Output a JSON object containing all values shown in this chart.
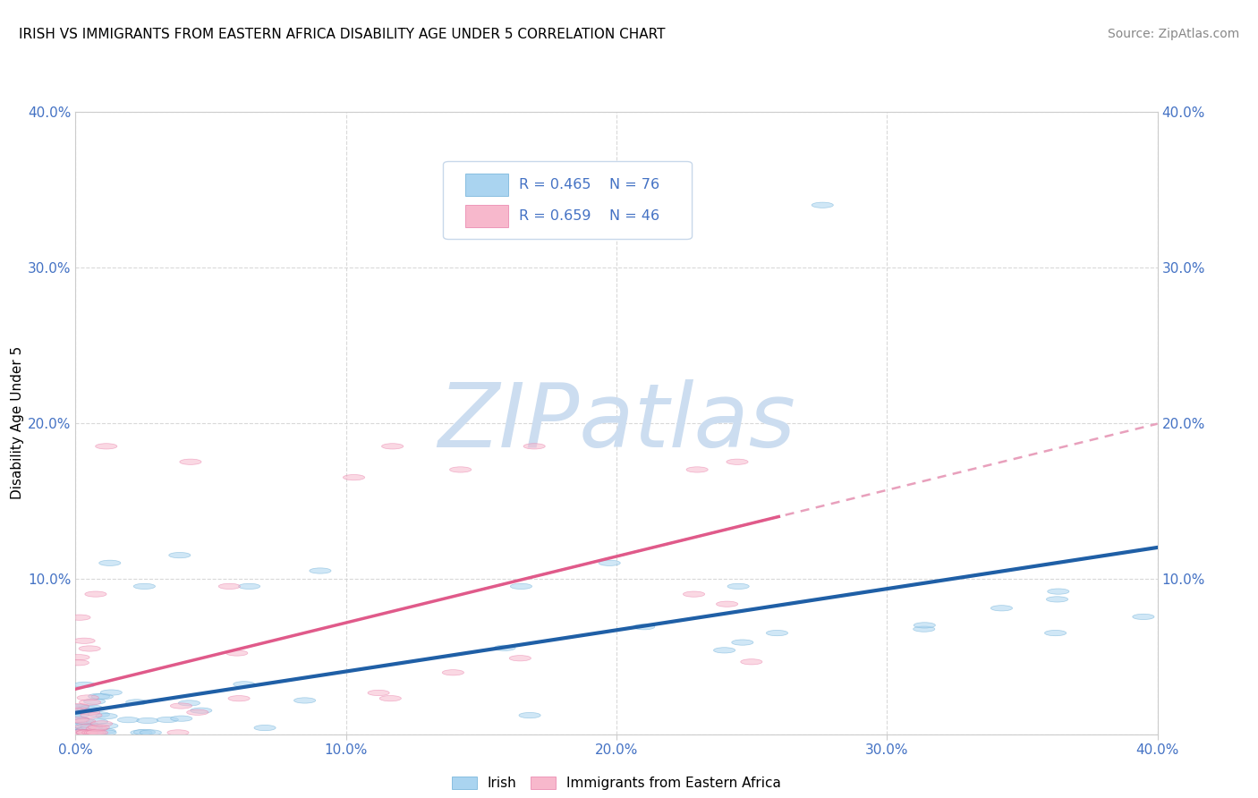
{
  "title": "IRISH VS IMMIGRANTS FROM EASTERN AFRICA DISABILITY AGE UNDER 5 CORRELATION CHART",
  "source": "Source: ZipAtlas.com",
  "ylabel": "Disability Age Under 5",
  "x_min": 0.0,
  "x_max": 0.4,
  "y_min": 0.0,
  "y_max": 0.4,
  "x_ticks": [
    0.0,
    0.1,
    0.2,
    0.3,
    0.4
  ],
  "y_ticks": [
    0.0,
    0.1,
    0.2,
    0.3,
    0.4
  ],
  "irish_color": "#aad4f0",
  "irish_edge_color": "#6baed6",
  "immigrant_color": "#f7b8cc",
  "immigrant_edge_color": "#e87da8",
  "irish_line_color": "#1f5fa6",
  "immigrant_line_color": "#e05a8a",
  "immigrant_dotted_color": "#e8a0bc",
  "tick_label_color": "#4472c4",
  "irish_R": 0.465,
  "irish_N": 76,
  "immigrant_R": 0.659,
  "immigrant_N": 46,
  "watermark": "ZIPatlas",
  "watermark_color": "#ccddf0",
  "legend_box_color": "#f0f4fa",
  "legend_border_color": "#c8d8e8"
}
